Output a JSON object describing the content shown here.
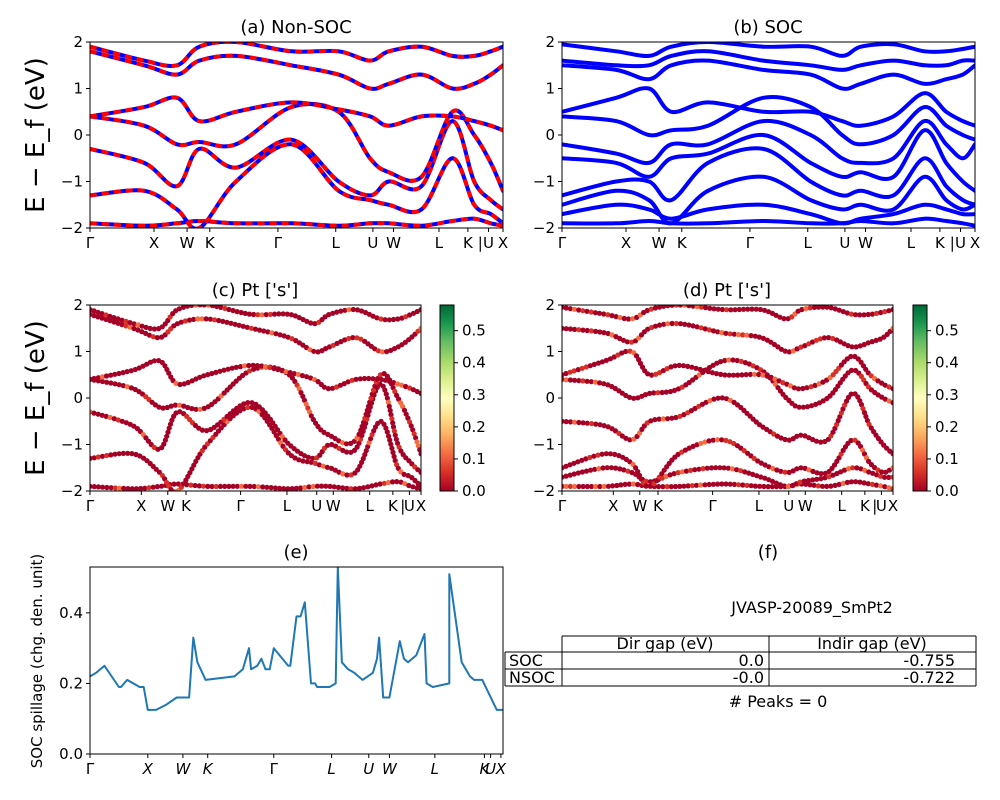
{
  "colorbar": {
    "ticks": [
      "0.0",
      "0.1",
      "0.2",
      "0.3",
      "0.4",
      "0.5"
    ]
  },
  "chart_data": [
    {
      "type": "line",
      "title": "(a) Non-SOC",
      "ylabel": "E − E_f (eV)",
      "ylim": [
        -2,
        2
      ],
      "yticks": [
        "−2",
        "−1",
        "0",
        "1",
        "2"
      ],
      "kpath": [
        {
          "label": "Γ",
          "frac": 0.0
        },
        {
          "label": "X",
          "frac": 0.155
        },
        {
          "label": "W",
          "frac": 0.235
        },
        {
          "label": "K",
          "frac": 0.29
        },
        {
          "label": "Γ",
          "frac": 0.455
        },
        {
          "label": "L",
          "frac": 0.595
        },
        {
          "label": "U",
          "frac": 0.685
        },
        {
          "label": "W",
          "frac": 0.735
        },
        {
          "label": "L",
          "frac": 0.845
        },
        {
          "label": "K",
          "frac": 0.915
        },
        {
          "label": "|",
          "frac": 0.945
        },
        {
          "label": "U",
          "frac": 0.965
        },
        {
          "label": "X",
          "frac": 1.0
        }
      ],
      "series": [
        {
          "color": "#0000ff",
          "values": [
            -1.9,
            -1.95,
            -1.9,
            -1.85,
            -1.9,
            -1.9,
            -1.95,
            -1.9,
            -1.9,
            -1.95,
            -1.85,
            -1.8,
            -1.9,
            -1.95
          ]
        },
        {
          "color": "#0000ff",
          "values": [
            -1.3,
            -1.2,
            -1.6,
            -2.0,
            -1.0,
            -0.2,
            -1.2,
            -1.4,
            -1.5,
            -1.6,
            -0.5,
            -1.5,
            -1.7,
            -1.9
          ]
        },
        {
          "color": "#0000ff",
          "values": [
            -0.3,
            -0.6,
            -1.1,
            -0.3,
            -0.7,
            -0.1,
            -1.0,
            -1.3,
            -1.0,
            -1.1,
            0.3,
            -1.0,
            -1.4,
            -1.6
          ]
        },
        {
          "color": "#0000ff",
          "values": [
            0.4,
            0.2,
            -0.2,
            -0.15,
            -0.2,
            0.6,
            0.5,
            -0.5,
            -0.8,
            -0.9,
            0.5,
            0.0,
            -0.6,
            -1.2
          ]
        },
        {
          "color": "#0000ff",
          "values": [
            0.4,
            0.6,
            0.8,
            0.3,
            0.5,
            0.7,
            0.55,
            0.4,
            0.2,
            0.4,
            0.4,
            0.3,
            0.2,
            0.1
          ]
        },
        {
          "color": "#0000ff",
          "values": [
            1.8,
            1.5,
            1.3,
            1.6,
            1.7,
            1.5,
            1.3,
            1.0,
            1.1,
            1.3,
            1.0,
            1.1,
            1.3,
            1.5
          ]
        },
        {
          "color": "#0000ff",
          "values": [
            1.9,
            1.6,
            1.5,
            1.9,
            2.0,
            1.8,
            1.8,
            1.6,
            1.8,
            1.9,
            1.7,
            1.7,
            1.8,
            1.9
          ]
        }
      ],
      "overlay": {
        "color": "#ff0000",
        "dashed": true
      }
    },
    {
      "type": "line",
      "title": "(b) SOC",
      "ylabel": "",
      "ylim": [
        -2,
        2
      ],
      "yticks": [
        "−2",
        "−1",
        "0",
        "1",
        "2"
      ],
      "kpath": [
        {
          "label": "Γ",
          "frac": 0.0
        },
        {
          "label": "X",
          "frac": 0.155
        },
        {
          "label": "W",
          "frac": 0.235
        },
        {
          "label": "K",
          "frac": 0.29
        },
        {
          "label": "Γ",
          "frac": 0.455
        },
        {
          "label": "L",
          "frac": 0.595
        },
        {
          "label": "U",
          "frac": 0.685
        },
        {
          "label": "W",
          "frac": 0.735
        },
        {
          "label": "L",
          "frac": 0.845
        },
        {
          "label": "K",
          "frac": 0.915
        },
        {
          "label": "|",
          "frac": 0.945
        },
        {
          "label": "U",
          "frac": 0.965
        },
        {
          "label": "X",
          "frac": 1.0
        }
      ],
      "series": [
        {
          "color": "#0000ff",
          "values": [
            -1.9,
            -1.9,
            -1.85,
            -1.9,
            -1.9,
            -1.85,
            -1.9,
            -1.9,
            -1.85,
            -1.9,
            -1.8,
            -1.85,
            -1.9,
            -1.95
          ]
        },
        {
          "color": "#0000ff",
          "values": [
            -1.7,
            -1.5,
            -1.6,
            -1.8,
            -1.6,
            -1.5,
            -1.7,
            -1.9,
            -1.8,
            -1.7,
            -1.5,
            -1.6,
            -1.7,
            -1.7
          ]
        },
        {
          "color": "#0000ff",
          "values": [
            -1.5,
            -1.2,
            -1.4,
            -1.9,
            -1.2,
            -0.9,
            -1.4,
            -1.6,
            -1.5,
            -1.6,
            -0.9,
            -1.4,
            -1.6,
            -1.5
          ]
        },
        {
          "color": "#0000ff",
          "values": [
            -1.3,
            -1.0,
            -1.0,
            -1.4,
            -0.6,
            -0.3,
            -1.0,
            -1.3,
            -1.2,
            -1.3,
            -0.5,
            -1.1,
            -1.4,
            -1.5
          ]
        },
        {
          "color": "#0000ff",
          "values": [
            -0.5,
            -0.6,
            -0.9,
            -0.5,
            -0.4,
            0.0,
            -0.6,
            -0.9,
            -0.8,
            -0.9,
            0.1,
            -0.6,
            -1.0,
            -1.2
          ]
        },
        {
          "color": "#0000ff",
          "values": [
            -0.2,
            -0.4,
            -0.6,
            -0.2,
            -0.2,
            0.3,
            0.0,
            -0.5,
            -0.6,
            -0.5,
            0.3,
            -0.2,
            -0.5,
            -0.2
          ]
        },
        {
          "color": "#0000ff",
          "values": [
            0.4,
            0.3,
            0.0,
            0.1,
            0.2,
            0.8,
            0.6,
            0.0,
            -0.2,
            0.0,
            0.6,
            0.2,
            0.0,
            -0.1
          ]
        },
        {
          "color": "#0000ff",
          "values": [
            0.5,
            0.8,
            1.0,
            0.5,
            0.7,
            0.5,
            0.5,
            0.3,
            0.2,
            0.4,
            0.9,
            0.5,
            0.3,
            0.2
          ]
        },
        {
          "color": "#0000ff",
          "values": [
            1.5,
            1.4,
            1.2,
            1.5,
            1.6,
            1.4,
            1.3,
            1.0,
            1.1,
            1.3,
            1.1,
            1.2,
            1.3,
            1.5
          ]
        },
        {
          "color": "#0000ff",
          "values": [
            1.6,
            1.5,
            1.5,
            1.7,
            1.8,
            1.6,
            1.5,
            1.4,
            1.5,
            1.6,
            1.5,
            1.5,
            1.6,
            1.6
          ]
        },
        {
          "color": "#0000ff",
          "values": [
            1.95,
            1.8,
            1.7,
            1.9,
            2.0,
            1.9,
            1.9,
            1.7,
            1.9,
            1.95,
            1.8,
            1.8,
            1.85,
            1.9
          ]
        }
      ]
    },
    {
      "type": "scatter",
      "title": "(c)  Pt ['s']",
      "ylabel": "E − E_f (eV)",
      "ylim": [
        -2,
        2
      ],
      "yticks": [
        "−2",
        "−1",
        "0",
        "1",
        "2"
      ],
      "colorbar_range": [
        0.0,
        0.58
      ],
      "kpath": [
        {
          "label": "Γ",
          "frac": 0.0
        },
        {
          "label": "X",
          "frac": 0.155
        },
        {
          "label": "W",
          "frac": 0.235
        },
        {
          "label": "K",
          "frac": 0.29
        },
        {
          "label": "Γ",
          "frac": 0.455
        },
        {
          "label": "L",
          "frac": 0.595
        },
        {
          "label": "U",
          "frac": 0.685
        },
        {
          "label": "W",
          "frac": 0.735
        },
        {
          "label": "L",
          "frac": 0.845
        },
        {
          "label": "K",
          "frac": 0.915
        },
        {
          "label": "|",
          "frac": 0.945
        },
        {
          "label": "U",
          "frac": 0.965
        },
        {
          "label": "X",
          "frac": 1.0
        }
      ],
      "series": [
        {
          "values": [
            -1.9,
            -1.95,
            -1.9,
            -1.85,
            -1.9,
            -1.9,
            -1.95,
            -1.9,
            -1.9,
            -1.95,
            -1.85,
            -1.8,
            -1.9,
            -1.95
          ]
        },
        {
          "values": [
            -1.3,
            -1.2,
            -1.6,
            -2.0,
            -1.0,
            -0.2,
            -1.2,
            -1.4,
            -1.5,
            -1.6,
            -0.5,
            -1.5,
            -1.7,
            -1.9
          ]
        },
        {
          "values": [
            -0.3,
            -0.6,
            -1.1,
            -0.3,
            -0.7,
            -0.1,
            -1.0,
            -1.3,
            -1.0,
            -1.1,
            0.3,
            -1.0,
            -1.4,
            -1.6
          ]
        },
        {
          "values": [
            0.4,
            0.2,
            -0.2,
            -0.15,
            -0.2,
            0.6,
            0.5,
            -0.5,
            -0.8,
            -0.9,
            0.5,
            0.0,
            -0.6,
            -1.2
          ]
        },
        {
          "values": [
            0.4,
            0.6,
            0.8,
            0.3,
            0.5,
            0.7,
            0.55,
            0.4,
            0.2,
            0.4,
            0.4,
            0.3,
            0.2,
            0.1
          ]
        },
        {
          "values": [
            1.8,
            1.5,
            1.3,
            1.6,
            1.7,
            1.5,
            1.3,
            1.0,
            1.1,
            1.3,
            1.0,
            1.1,
            1.3,
            1.5
          ]
        },
        {
          "values": [
            1.9,
            1.6,
            1.5,
            1.9,
            2.0,
            1.8,
            1.8,
            1.6,
            1.8,
            1.9,
            1.7,
            1.7,
            1.8,
            1.9
          ]
        }
      ]
    },
    {
      "type": "scatter",
      "title": "(d) Pt ['s']",
      "ylabel": "",
      "ylim": [
        -2,
        2
      ],
      "yticks": [
        "−2",
        "−1",
        "0",
        "1",
        "2"
      ],
      "colorbar_range": [
        0.0,
        0.58
      ],
      "kpath": [
        {
          "label": "Γ",
          "frac": 0.0
        },
        {
          "label": "X",
          "frac": 0.155
        },
        {
          "label": "W",
          "frac": 0.235
        },
        {
          "label": "K",
          "frac": 0.29
        },
        {
          "label": "Γ",
          "frac": 0.455
        },
        {
          "label": "L",
          "frac": 0.595
        },
        {
          "label": "U",
          "frac": 0.685
        },
        {
          "label": "W",
          "frac": 0.735
        },
        {
          "label": "L",
          "frac": 0.845
        },
        {
          "label": "K",
          "frac": 0.915
        },
        {
          "label": "|",
          "frac": 0.945
        },
        {
          "label": "U",
          "frac": 0.965
        },
        {
          "label": "X",
          "frac": 1.0
        }
      ],
      "series": [
        {
          "values": [
            -1.9,
            -1.9,
            -1.85,
            -1.9,
            -1.9,
            -1.85,
            -1.9,
            -1.9,
            -1.85,
            -1.9,
            -1.8,
            -1.85,
            -1.9,
            -1.95
          ]
        },
        {
          "values": [
            -1.7,
            -1.5,
            -1.6,
            -1.8,
            -1.6,
            -1.5,
            -1.7,
            -1.9,
            -1.8,
            -1.7,
            -1.5,
            -1.6,
            -1.7,
            -1.7
          ]
        },
        {
          "values": [
            -1.5,
            -1.2,
            -1.4,
            -1.9,
            -1.2,
            -0.9,
            -1.4,
            -1.6,
            -1.5,
            -1.6,
            -0.9,
            -1.4,
            -1.6,
            -1.5
          ]
        },
        {
          "values": [
            -0.5,
            -0.6,
            -0.9,
            -0.5,
            -0.4,
            0.0,
            -0.6,
            -0.9,
            -0.8,
            -0.9,
            0.1,
            -0.6,
            -1.0,
            -1.2
          ]
        },
        {
          "values": [
            0.4,
            0.3,
            0.0,
            0.1,
            0.2,
            0.8,
            0.6,
            0.0,
            -0.2,
            0.0,
            0.6,
            0.2,
            0.0,
            -0.1
          ]
        },
        {
          "values": [
            0.5,
            0.8,
            1.0,
            0.5,
            0.7,
            0.5,
            0.5,
            0.3,
            0.2,
            0.4,
            0.9,
            0.5,
            0.3,
            0.2
          ]
        },
        {
          "values": [
            1.5,
            1.4,
            1.2,
            1.5,
            1.6,
            1.4,
            1.3,
            1.0,
            1.1,
            1.3,
            1.1,
            1.2,
            1.3,
            1.5
          ]
        },
        {
          "values": [
            1.95,
            1.8,
            1.7,
            1.9,
            2.0,
            1.9,
            1.9,
            1.7,
            1.9,
            1.95,
            1.8,
            1.8,
            1.85,
            1.9
          ]
        }
      ]
    },
    {
      "type": "line",
      "title": "(e)",
      "ylabel": "SOC spillage (chg. den. unit)",
      "ylim": [
        0.0,
        0.53
      ],
      "yticks": [
        {
          "label": "0.0",
          "value": 0.0
        },
        {
          "label": "0.2",
          "value": 0.2
        },
        {
          "label": "0.4",
          "value": 0.4
        }
      ],
      "xticks": [
        {
          "label": "Γ",
          "frac": 0.0
        },
        {
          "label": "X",
          "frac": 0.14
        },
        {
          "label": "W",
          "frac": 0.225
        },
        {
          "label": "K",
          "frac": 0.285
        },
        {
          "label": "Γ",
          "frac": 0.445
        },
        {
          "label": "L",
          "frac": 0.585
        },
        {
          "label": "U",
          "frac": 0.675
        },
        {
          "label": "W",
          "frac": 0.725
        },
        {
          "label": "L",
          "frac": 0.835
        },
        {
          "label": "K",
          "frac": 0.955
        },
        {
          "label": "U",
          "frac": 0.97
        },
        {
          "label": "X",
          "frac": 0.995
        }
      ],
      "series": [
        {
          "color": "#1f77b4",
          "x": [
            0.0,
            0.015,
            0.025,
            0.035,
            0.07,
            0.075,
            0.09,
            0.12,
            0.13,
            0.14,
            0.16,
            0.185,
            0.21,
            0.24,
            0.25,
            0.26,
            0.28,
            0.35,
            0.37,
            0.385,
            0.39,
            0.405,
            0.415,
            0.425,
            0.435,
            0.445,
            0.48,
            0.485,
            0.5,
            0.51,
            0.52,
            0.535,
            0.545,
            0.55,
            0.58,
            0.595,
            0.6,
            0.61,
            0.625,
            0.64,
            0.65,
            0.66,
            0.685,
            0.695,
            0.7,
            0.71,
            0.725,
            0.75,
            0.76,
            0.77,
            0.79,
            0.81,
            0.815,
            0.83,
            0.87,
            0.87,
            0.9,
            0.91,
            0.92,
            0.93,
            0.94,
            0.95,
            0.985,
            1.0
          ],
          "values": [
            0.22,
            0.23,
            0.24,
            0.25,
            0.19,
            0.19,
            0.21,
            0.19,
            0.19,
            0.125,
            0.125,
            0.14,
            0.16,
            0.16,
            0.33,
            0.26,
            0.21,
            0.22,
            0.24,
            0.3,
            0.24,
            0.25,
            0.27,
            0.24,
            0.24,
            0.3,
            0.25,
            0.25,
            0.39,
            0.39,
            0.43,
            0.2,
            0.2,
            0.19,
            0.19,
            0.2,
            0.53,
            0.26,
            0.24,
            0.23,
            0.22,
            0.21,
            0.23,
            0.27,
            0.33,
            0.16,
            0.16,
            0.32,
            0.27,
            0.26,
            0.28,
            0.34,
            0.2,
            0.19,
            0.2,
            0.51,
            0.26,
            0.24,
            0.22,
            0.21,
            0.21,
            0.21,
            0.125,
            0.125
          ]
        }
      ]
    }
  ],
  "panel_f": {
    "title": "(f)",
    "material": "JVASP-20089_SmPt2",
    "table": {
      "headers": [
        "Dir gap (eV)",
        "Indir gap (eV)"
      ],
      "rows": [
        {
          "name": "SOC",
          "dir": "0.0",
          "indir": "-0.755"
        },
        {
          "name": "NSOC",
          "dir": "-0.0",
          "indir": "-0.722"
        }
      ]
    },
    "peaks": "# Peaks = 0"
  }
}
